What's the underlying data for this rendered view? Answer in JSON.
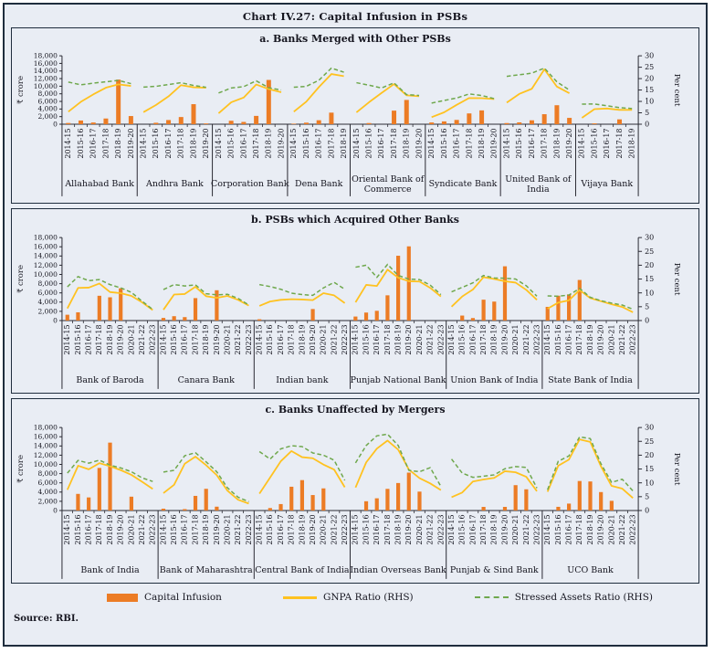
{
  "title": "Chart IV.27: Capital Infusion in PSBs",
  "source": "Source: RBI.",
  "legend": [
    {
      "label": "Capital Infusion",
      "type": "bar"
    },
    {
      "label": "GNPA Ratio (RHS)",
      "type": "line"
    },
    {
      "label": "Stressed Assets Ratio (RHS)",
      "type": "dashed-line"
    }
  ],
  "chart_data": {
    "type": "bar+line",
    "grid": false,
    "legend_position": "bottom",
    "colors": {
      "bar": "#EC7C25",
      "gnpa": "#FFC220",
      "stressed": "#6FA84D",
      "axis": "#2a2a33",
      "text": "#15151f",
      "background": "#E9EDF4"
    },
    "left_axis": {
      "label": "₹ crore",
      "min": 0,
      "max": 18000,
      "step": 2000
    },
    "right_axis": {
      "label": "Per cent",
      "min": 0,
      "max": 30,
      "step": 5
    },
    "panels": [
      {
        "id": "a",
        "title": "a. Banks Merged with Other PSBs",
        "banks": [
          {
            "name": "Allahabad Bank",
            "years": [
              "2014-15",
              "2015-16",
              "2016-17",
              "2017-18",
              "2018-19",
              "2019-20"
            ],
            "capital_infusion_crore": [
              320,
              970,
              450,
              1500,
              11740,
              2150
            ],
            "gnpa_ratio_pct": [
              5.5,
              9.8,
              13.1,
              16.0,
              17.5,
              16.8
            ],
            "stressed_assets_ratio_pct": [
              18.5,
              17.3,
              18.0,
              18.6,
              19.2,
              17.8
            ]
          },
          {
            "name": "Andhra Bank",
            "years": [
              "2014-15",
              "2015-16",
              "2016-17",
              "2017-18",
              "2018-19",
              "2019-20"
            ],
            "capital_infusion_crore": [
              0,
              380,
              1100,
              1890,
              5275,
              200
            ],
            "gnpa_ratio_pct": [
              5.3,
              8.4,
              12.2,
              17.1,
              16.2,
              16.0
            ],
            "stressed_assets_ratio_pct": [
              16.3,
              16.6,
              17.4,
              18.2,
              17.0,
              16.2
            ]
          },
          {
            "name": "Corporation Bank",
            "years": [
              "2014-15",
              "2015-16",
              "2016-17",
              "2017-18",
              "2018-19",
              "2019-20"
            ],
            "capital_infusion_crore": [
              0,
              910,
              600,
              2187,
              11650,
              0
            ],
            "gnpa_ratio_pct": [
              4.8,
              9.6,
              11.7,
              17.4,
              15.4,
              14.0
            ],
            "stressed_assets_ratio_pct": [
              13.7,
              15.9,
              16.5,
              19.0,
              16.0,
              15.0
            ]
          },
          {
            "name": "Dena Bank",
            "years": [
              "2014-15",
              "2015-16",
              "2016-17",
              "2017-18",
              "2018-19"
            ],
            "capital_infusion_crore": [
              140,
              407,
              1046,
              3045,
              0
            ],
            "gnpa_ratio_pct": [
              5.5,
              9.9,
              16.3,
              22.0,
              21.1
            ],
            "stressed_assets_ratio_pct": [
              16.2,
              16.6,
              19.3,
              24.6,
              22.8
            ]
          },
          {
            "name": "Oriental Bank of Commerce",
            "years": [
              "2014-15",
              "2015-16",
              "2016-17",
              "2017-18",
              "2018-19",
              "2019-20"
            ],
            "capital_infusion_crore": [
              0,
              300,
              0,
              3571,
              6386,
              0
            ],
            "gnpa_ratio_pct": [
              5.2,
              9.6,
              13.7,
              17.6,
              12.7,
              12.3
            ],
            "stressed_assets_ratio_pct": [
              18.2,
              17.1,
              15.9,
              18.1,
              13.0,
              12.6
            ]
          },
          {
            "name": "Syndicate Bank",
            "years": [
              "2014-15",
              "2015-16",
              "2016-17",
              "2017-18",
              "2018-19",
              "2019-20"
            ],
            "capital_infusion_crore": [
              460,
              740,
              1130,
              2839,
              3638,
              0
            ],
            "gnpa_ratio_pct": [
              3.1,
              5.2,
              8.5,
              11.5,
              11.4,
              11.0
            ],
            "stressed_assets_ratio_pct": [
              9.3,
              10.4,
              11.5,
              13.3,
              12.6,
              11.2
            ]
          },
          {
            "name": "United Bank of India",
            "years": [
              "2014-15",
              "2015-16",
              "2016-17",
              "2017-18",
              "2018-19",
              "2019-20"
            ],
            "capital_infusion_crore": [
              300,
              480,
              1026,
              2634,
              4998,
              1666
            ],
            "gnpa_ratio_pct": [
              9.5,
              13.3,
              15.5,
              24.1,
              16.5,
              13.6
            ],
            "stressed_assets_ratio_pct": [
              21.0,
              21.7,
              22.4,
              24.6,
              18.6,
              15.0
            ]
          },
          {
            "name": "Vijaya Bank",
            "years": [
              "2014-15",
              "2015-16",
              "2016-17",
              "2017-18",
              "2018-19"
            ],
            "capital_infusion_crore": [
              0,
              220,
              0,
              1277,
              0
            ],
            "gnpa_ratio_pct": [
              2.8,
              6.6,
              6.9,
              6.3,
              6.3
            ],
            "stressed_assets_ratio_pct": [
              8.8,
              8.9,
              8.1,
              7.3,
              6.9
            ]
          }
        ]
      },
      {
        "id": "b",
        "title": "b. PSBs which Acquired Other Banks",
        "banks": [
          {
            "name": "Bank of Baroda",
            "years": [
              "2014-15",
              "2015-16",
              "2016-17",
              "2017-18",
              "2018-19",
              "2019-20",
              "2020-21",
              "2021-22",
              "2022-23"
            ],
            "capital_infusion_crore": [
              1260,
              1786,
              0,
              5375,
              5042,
              7000,
              0,
              0,
              0
            ],
            "gnpa_ratio_pct": [
              4.4,
              11.8,
              11.9,
              13.4,
              10.3,
              9.9,
              8.9,
              6.6,
              3.8
            ],
            "stressed_assets_ratio_pct": [
              12.2,
              15.9,
              14.4,
              14.8,
              13.0,
              11.8,
              10.2,
              7.0,
              4.0
            ]
          },
          {
            "name": "Canara Bank",
            "years": [
              "2014-15",
              "2015-16",
              "2016-17",
              "2017-18",
              "2018-19",
              "2019-20",
              "2020-21",
              "2021-22",
              "2022-23"
            ],
            "capital_infusion_crore": [
              570,
              947,
              745,
              4865,
              0,
              6571,
              0,
              0,
              0
            ],
            "gnpa_ratio_pct": [
              3.9,
              9.4,
              9.6,
              12.2,
              8.8,
              8.2,
              8.9,
              7.5,
              5.4
            ],
            "stressed_assets_ratio_pct": [
              11.2,
              13.0,
              12.5,
              12.9,
              9.7,
              9.3,
              9.5,
              8.0,
              5.6
            ]
          },
          {
            "name": "Indian bank",
            "years": [
              "2014-15",
              "2015-16",
              "2016-17",
              "2017-18",
              "2018-19",
              "2019-20",
              "2020-21",
              "2021-22",
              "2022-23"
            ],
            "capital_infusion_crore": [
              280,
              0,
              0,
              0,
              0,
              2500,
              0,
              0,
              0
            ],
            "gnpa_ratio_pct": [
              5.3,
              6.9,
              7.5,
              7.7,
              7.6,
              7.4,
              9.9,
              9.1,
              6.3
            ],
            "stressed_assets_ratio_pct": [
              13.0,
              12.3,
              11.3,
              9.9,
              9.4,
              9.1,
              11.8,
              13.8,
              11.3
            ]
          },
          {
            "name": "Punjab National Bank",
            "years": [
              "2014-15",
              "2015-16",
              "2016-17",
              "2017-18",
              "2018-19",
              "2019-20",
              "2020-21",
              "2021-22",
              "2022-23"
            ],
            "capital_infusion_crore": [
              870,
              1732,
              2112,
              5473,
              14054,
              16091,
              0,
              0,
              0
            ],
            "gnpa_ratio_pct": [
              6.6,
              12.9,
              12.5,
              18.4,
              15.5,
              14.2,
              14.1,
              11.8,
              8.7
            ],
            "stressed_assets_ratio_pct": [
              19.3,
              20.0,
              15.6,
              20.3,
              16.3,
              15.0,
              14.8,
              12.8,
              9.4
            ]
          },
          {
            "name": "Union Bank of India",
            "years": [
              "2014-15",
              "2015-16",
              "2016-17",
              "2017-18",
              "2018-19",
              "2019-20",
              "2020-21",
              "2021-22",
              "2022-23"
            ],
            "capital_infusion_crore": [
              0,
              1080,
              541,
              4524,
              4112,
              11768,
              0,
              0,
              0
            ],
            "gnpa_ratio_pct": [
              5.0,
              8.7,
              11.2,
              15.7,
              15.0,
              14.2,
              13.7,
              11.1,
              7.5
            ],
            "stressed_assets_ratio_pct": [
              10.4,
              12.0,
              13.6,
              16.3,
              15.4,
              15.3,
              15.0,
              12.6,
              8.8
            ]
          },
          {
            "name": "State Bank of India",
            "years": [
              "2014-15",
              "2015-16",
              "2016-17",
              "2017-18",
              "2018-19",
              "2019-20",
              "2020-21",
              "2021-22",
              "2022-23"
            ],
            "capital_infusion_crore": [
              2970,
              5393,
              5681,
              8800,
              0,
              0,
              0,
              0,
              0
            ],
            "gnpa_ratio_pct": [
              4.3,
              6.5,
              7.3,
              11.0,
              8.1,
              7.0,
              5.9,
              4.9,
              3.0
            ],
            "stressed_assets_ratio_pct": [
              8.9,
              8.8,
              9.2,
              11.6,
              8.4,
              7.2,
              6.3,
              5.6,
              4.1
            ]
          }
        ]
      },
      {
        "id": "c",
        "title": "c. Banks Unaffected by Mergers",
        "banks": [
          {
            "name": "Bank of India",
            "years": [
              "2014-15",
              "2015-16",
              "2016-17",
              "2017-18",
              "2018-19",
              "2019-20",
              "2020-21",
              "2021-22",
              "2022-23"
            ],
            "capital_infusion_crore": [
              0,
              3605,
              2838,
              9232,
              14724,
              0,
              3000,
              0,
              0
            ],
            "gnpa_ratio_pct": [
              7.5,
              16.2,
              14.9,
              17.1,
              16.0,
              14.6,
              12.9,
              10.4,
              7.8
            ],
            "stressed_assets_ratio_pct": [
              13.5,
              18.1,
              17.1,
              18.2,
              16.4,
              15.4,
              14.0,
              11.8,
              10.5
            ]
          },
          {
            "name": "Bank of Maharashtra",
            "years": [
              "2014-15",
              "2015-16",
              "2016-17",
              "2017-18",
              "2018-19",
              "2019-20",
              "2020-21",
              "2021-22",
              "2022-23"
            ],
            "capital_infusion_crore": [
              394,
              0,
              300,
              3173,
              4703,
              831,
              0,
              0,
              0
            ],
            "gnpa_ratio_pct": [
              6.3,
              9.3,
              16.9,
              19.5,
              16.4,
              12.8,
              7.2,
              3.9,
              2.5
            ],
            "stressed_assets_ratio_pct": [
              13.9,
              14.5,
              19.8,
              20.9,
              17.6,
              14.0,
              8.2,
              4.8,
              3.2
            ]
          },
          {
            "name": "Central Bank of India",
            "years": [
              "2014-15",
              "2015-16",
              "2016-17",
              "2017-18",
              "2018-19",
              "2019-20",
              "2020-21",
              "2021-22",
              "2022-23"
            ],
            "capital_infusion_crore": [
              0,
              535,
              1397,
              5158,
              6592,
              3353,
              4800,
              0,
              0
            ],
            "gnpa_ratio_pct": [
              6.1,
              11.9,
              17.8,
              21.5,
              19.3,
              18.9,
              16.6,
              14.8,
              8.4
            ],
            "stressed_assets_ratio_pct": [
              21.3,
              18.6,
              22.3,
              23.4,
              23.1,
              20.8,
              20.0,
              18.2,
              10.9
            ]
          },
          {
            "name": "Indian Overseas Bank",
            "years": [
              "2014-15",
              "2015-16",
              "2016-17",
              "2017-18",
              "2018-19",
              "2019-20",
              "2020-21",
              "2021-22",
              "2022-23"
            ],
            "capital_infusion_crore": [
              0,
              2009,
              2651,
              4694,
              5963,
              8217,
              4100,
              0,
              0
            ],
            "gnpa_ratio_pct": [
              8.3,
              17.4,
              22.4,
              25.3,
              22.0,
              14.8,
              11.7,
              9.8,
              7.4
            ],
            "stressed_assets_ratio_pct": [
              17.2,
              23.5,
              27.0,
              27.6,
              23.5,
              14.5,
              14.0,
              15.5,
              8.7
            ]
          },
          {
            "name": "Punjab & Sind Bank",
            "years": [
              "2014-15",
              "2015-16",
              "2016-17",
              "2017-18",
              "2018-19",
              "2019-20",
              "2020-21",
              "2021-22",
              "2022-23"
            ],
            "capital_infusion_crore": [
              0,
              0,
              0,
              785,
              0,
              787,
              5500,
              4600,
              0
            ],
            "gnpa_ratio_pct": [
              4.8,
              6.5,
              10.5,
              11.2,
              11.8,
              14.2,
              13.8,
              12.2,
              7.0
            ],
            "stressed_assets_ratio_pct": [
              18.6,
              13.5,
              12.0,
              12.4,
              12.9,
              15.1,
              15.9,
              15.6,
              8.1
            ]
          },
          {
            "name": "UCO Bank",
            "years": [
              "2014-15",
              "2015-16",
              "2016-17",
              "2017-18",
              "2018-19",
              "2019-20",
              "2020-21",
              "2021-22",
              "2022-23"
            ],
            "capital_infusion_crore": [
              0,
              800,
              1500,
              6400,
              6300,
              4000,
              2100,
              0,
              0
            ],
            "gnpa_ratio_pct": [
              6.8,
              16.2,
              18.4,
              25.7,
              24.8,
              16.0,
              8.9,
              7.9,
              4.5
            ],
            "stressed_assets_ratio_pct": [
              7.5,
              17.8,
              19.7,
              26.6,
              26.0,
              16.9,
              10.2,
              11.3,
              7.1
            ]
          }
        ]
      }
    ]
  }
}
